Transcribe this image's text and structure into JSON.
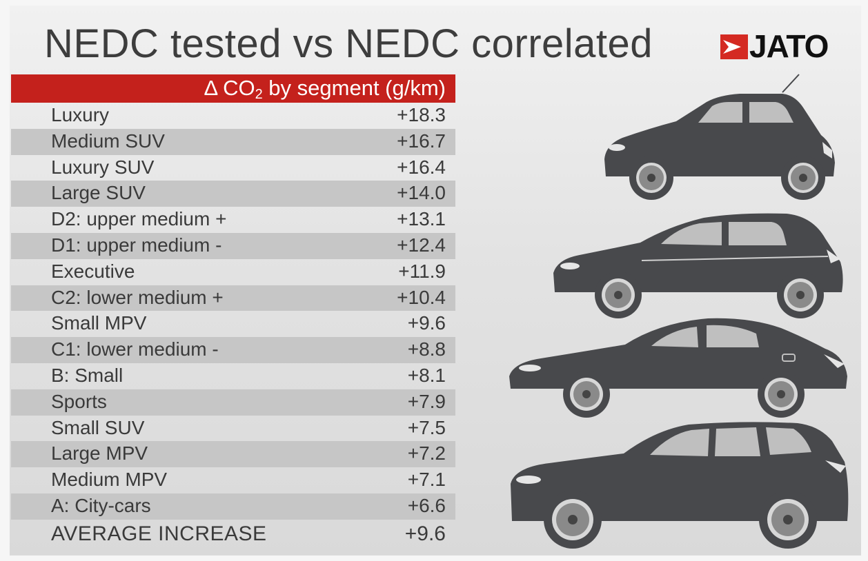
{
  "title": "NEDC tested vs NEDC correlated",
  "logo": {
    "text": "JATO",
    "accent_color": "#d42a22"
  },
  "table_header": {
    "prefix": "Δ CO",
    "subscript": "2",
    "suffix": " by segment (g/km)"
  },
  "colors": {
    "header_bg": "#c4211c",
    "row_shade": "#c6c6c6",
    "car_fill": "#48494c",
    "text": "#3a3a3a"
  },
  "chart_data": {
    "type": "table",
    "title": "NEDC tested vs NEDC correlated",
    "column_header": "Δ CO₂ by segment (g/km)",
    "rows": [
      {
        "segment": "Luxury",
        "value": "+18.3"
      },
      {
        "segment": "Medium SUV",
        "value": "+16.7"
      },
      {
        "segment": "Luxury SUV",
        "value": "+16.4"
      },
      {
        "segment": "Large SUV",
        "value": "+14.0"
      },
      {
        "segment": "D2: upper medium +",
        "value": "+13.1"
      },
      {
        "segment": "D1: upper medium -",
        "value": "+12.4"
      },
      {
        "segment": "Executive",
        "value": "+11.9"
      },
      {
        "segment": "C2: lower medium +",
        "value": "+10.4"
      },
      {
        "segment": "Small MPV",
        "value": "+9.6"
      },
      {
        "segment": "C1: lower medium -",
        "value": "+8.8"
      },
      {
        "segment": "B: Small",
        "value": "+8.1"
      },
      {
        "segment": "Sports",
        "value": "+7.9"
      },
      {
        "segment": "Small SUV",
        "value": "+7.5"
      },
      {
        "segment": "Large MPV",
        "value": "+7.2"
      },
      {
        "segment": "Medium MPV",
        "value": "+7.1"
      },
      {
        "segment": "A: City-cars",
        "value": "+6.6"
      }
    ],
    "summary": {
      "segment": "AVERAGE INCREASE",
      "value": "+9.6"
    }
  },
  "illustrations": [
    "hatchback-car-icon",
    "five-door-car-icon",
    "sedan-car-icon",
    "suv-car-icon"
  ]
}
